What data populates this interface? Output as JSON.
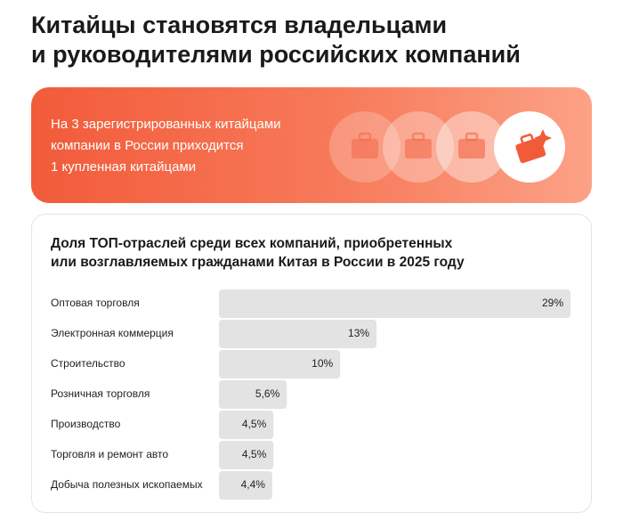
{
  "header": {
    "title": [
      "Китайцы становятся владельцами",
      "и руководителями российских компаний"
    ]
  },
  "banner": {
    "text": [
      "На 3 зарегистрированных китайцами",
      "компании в России приходится",
      "1 купленная китайцами"
    ]
  },
  "chart_data": {
    "type": "bar",
    "orientation": "horizontal",
    "title": [
      "Доля ТОП-отраслей среди всех компаний, приобретенных",
      "или возглавляемых гражданами Китая в России в 2025 году"
    ],
    "categories": [
      "Оптовая торговля",
      "Электронная коммерция",
      "Строительство",
      "Розничная торговля",
      "Производство",
      "Торговля и ремонт авто",
      "Добыча полезных ископаемых"
    ],
    "values": [
      29,
      13,
      10,
      5.6,
      4.5,
      4.5,
      4.4
    ],
    "value_labels": [
      "29%",
      "13%",
      "10%",
      "5,6%",
      "4,5%",
      "4,5%",
      "4,4%"
    ],
    "color": "#e3e3e3"
  }
}
